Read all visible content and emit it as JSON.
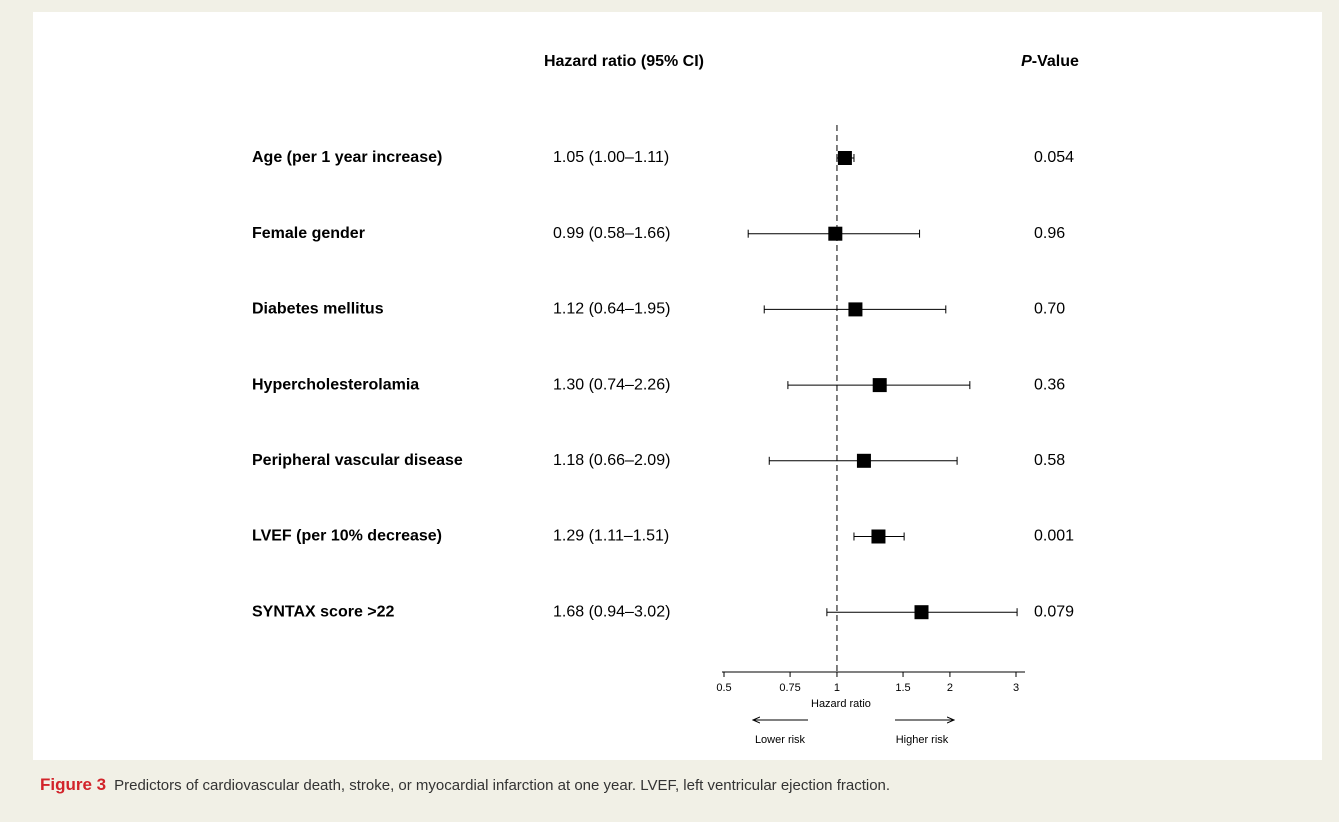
{
  "chart_data": {
    "type": "forest",
    "column_headers": {
      "estimate": "Hazard ratio (95% CI)",
      "p_value": [
        "P",
        "-Value"
      ]
    },
    "categories": [
      "Age (per 1 year increase)",
      "Female gender",
      "Diabetes mellitus",
      "Hypercholesterolamia",
      "Peripheral vascular disease",
      "LVEF (per 10% decrease)",
      "SYNTAX score >22"
    ],
    "values": [
      1.05,
      0.99,
      1.12,
      1.3,
      1.18,
      1.29,
      1.68
    ],
    "lower": [
      1.0,
      0.58,
      0.64,
      0.74,
      0.66,
      1.11,
      0.94
    ],
    "upper": [
      1.11,
      1.66,
      1.95,
      2.26,
      2.09,
      1.51,
      3.02
    ],
    "value_labels": [
      "1.05 (1.00–1.11)",
      "0.99 (0.58–1.66)",
      "1.12 (0.64–1.95)",
      "1.30 (0.74–2.26)",
      "1.18 (0.66–2.09)",
      "1.29 (1.11–1.51)",
      "1.68 (0.94–3.02)"
    ],
    "p_values": [
      "0.054",
      "0.96",
      "0.70",
      "0.36",
      "0.58",
      "0.001",
      "0.079"
    ],
    "color": "#000000",
    "xscale": "log",
    "xlim": [
      0.5,
      3
    ],
    "xticks": [
      0.5,
      0.75,
      1,
      1.5,
      2,
      3
    ],
    "reference_line": 1,
    "xlabel": "Hazard ratio",
    "annotations": {
      "left": "Lower risk",
      "right": "Higher risk"
    }
  },
  "caption": {
    "label": "Figure 3",
    "text": "Predictors of cardiovascular death, stroke, or myocardial infarction at one year. LVEF, left ventricular ejection fraction."
  }
}
